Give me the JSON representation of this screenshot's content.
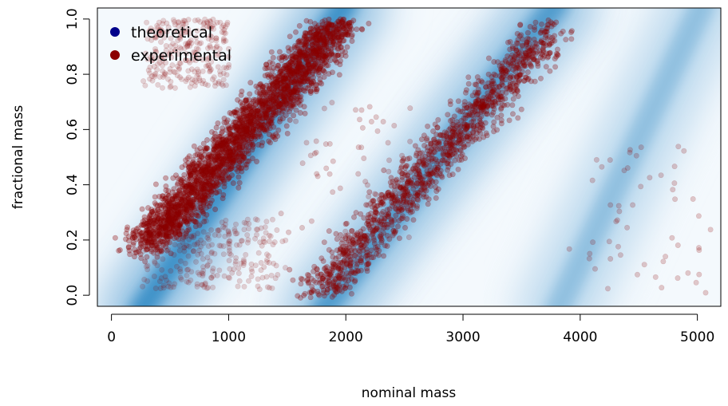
{
  "chart_data": {
    "type": "scatter",
    "title": "",
    "xlabel": "nominal mass",
    "ylabel": "fractional mass",
    "xlim": [
      -120,
      5200
    ],
    "ylim": [
      -0.04,
      1.04
    ],
    "x_ticks": [
      0,
      1000,
      2000,
      3000,
      4000,
      5000
    ],
    "y_ticks": [
      0.0,
      0.2,
      0.4,
      0.6,
      0.8,
      1.0
    ],
    "x_tick_labels": [
      "0",
      "1000",
      "2000",
      "3000",
      "4000",
      "5000"
    ],
    "y_tick_labels": [
      "0.0",
      "0.2",
      "0.4",
      "0.6",
      "0.8",
      "1.0"
    ],
    "grid": false,
    "legend_position": "top-left",
    "series": [
      {
        "name": "theoretical",
        "render": "density",
        "color": "#00008b",
        "bands": [
          {
            "x_start": 250,
            "x_end": 2000,
            "y_start": 0.0,
            "y_end": 1.0,
            "intensity": 1.0
          },
          {
            "x_start": 1800,
            "x_end": 3800,
            "y_start": 0.0,
            "y_end": 1.0,
            "intensity": 0.9
          },
          {
            "x_start": 3800,
            "x_end": 5050,
            "y_start": 0.0,
            "y_end": 1.0,
            "intensity": 0.55
          }
        ]
      },
      {
        "name": "experimental",
        "render": "points",
        "color": "#8b0000",
        "clusters": [
          {
            "x_start": 300,
            "x_end": 1950,
            "y_start": 0.18,
            "y_end": 0.99,
            "spread_x": 110,
            "density": "very-high"
          },
          {
            "x_start": 1750,
            "x_end": 3750,
            "y_start": 0.01,
            "y_end": 0.96,
            "spread_x": 110,
            "density": "high"
          },
          {
            "x_start": 300,
            "x_end": 1000,
            "y_start": 0.75,
            "y_end": 1.0,
            "spread_x": 60,
            "density": "low"
          },
          {
            "x_start": 300,
            "x_end": 1400,
            "y_start": 0.02,
            "y_end": 0.28,
            "spread_x": 200,
            "density": "low"
          },
          {
            "x_start": 1500,
            "x_end": 2500,
            "y_start": 0.2,
            "y_end": 0.7,
            "spread_x": 200,
            "density": "sparse"
          },
          {
            "x_start": 4000,
            "x_end": 5100,
            "y_start": 0.0,
            "y_end": 0.55,
            "spread_x": 250,
            "density": "sparse"
          }
        ]
      }
    ]
  }
}
